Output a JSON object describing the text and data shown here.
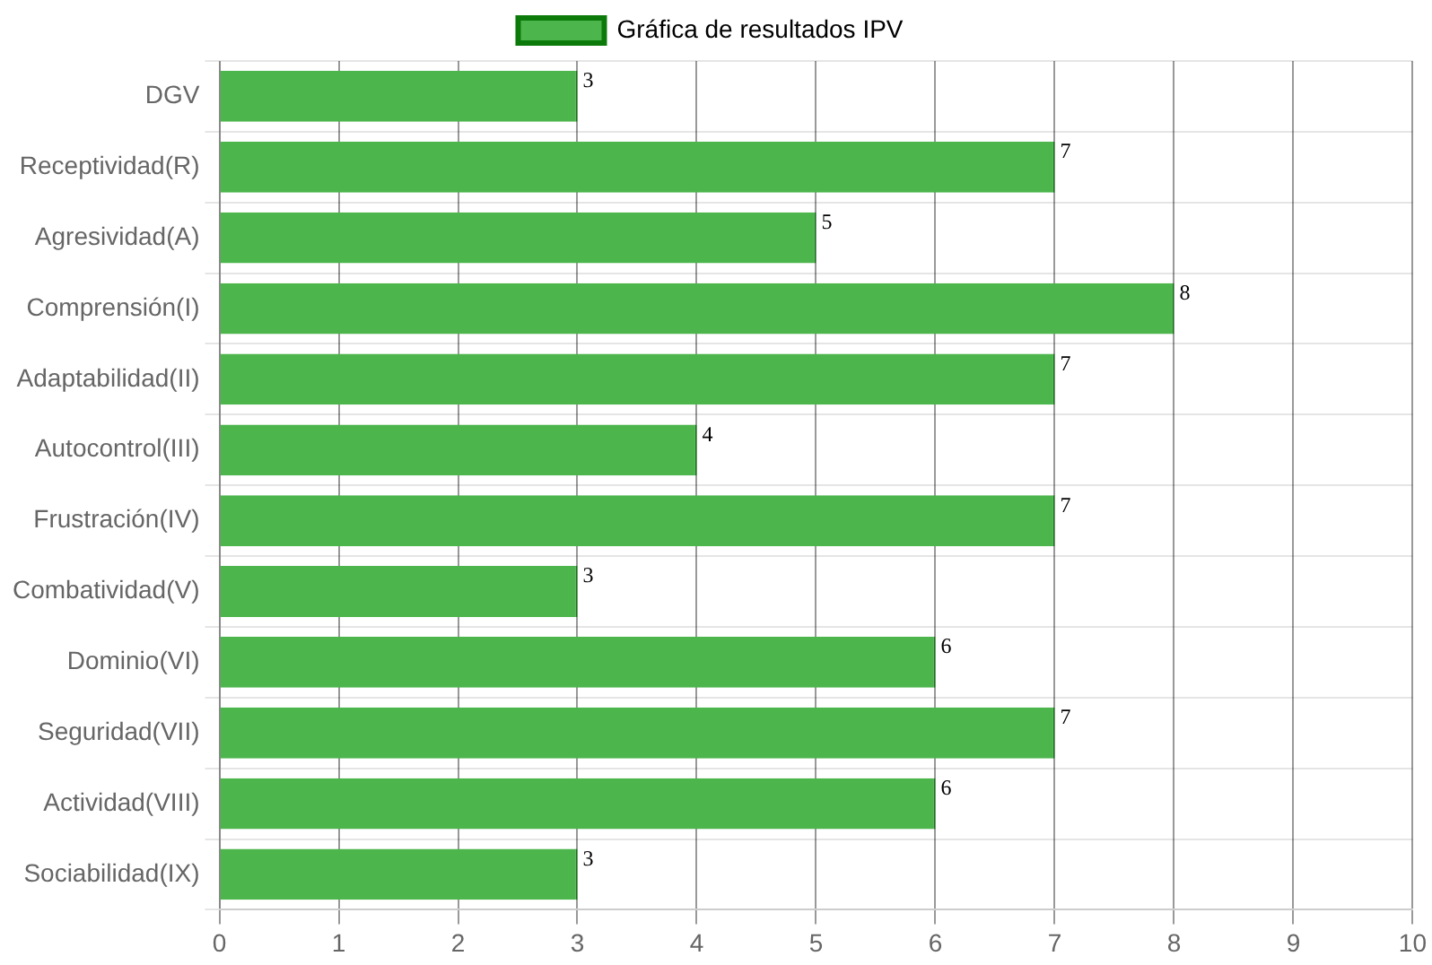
{
  "chart_data": {
    "type": "bar",
    "orientation": "horizontal",
    "categories": [
      "DGV",
      "Receptividad(R)",
      "Agresividad(A)",
      "Comprensión(I)",
      "Adaptabilidad(II)",
      "Autocontrol(III)",
      "Frustración(IV)",
      "Combatividad(V)",
      "Dominio(VI)",
      "Seguridad(VII)",
      "Actividad(VIII)",
      "Sociabilidad(IX)"
    ],
    "series": [
      {
        "name": "Gráfica de resultados IPV",
        "color": "#4cb54c",
        "values": [
          3,
          7,
          5,
          8,
          7,
          4,
          7,
          3,
          6,
          7,
          6,
          3
        ]
      }
    ],
    "xlim": [
      0,
      10
    ],
    "xticks": [
      0,
      1,
      2,
      3,
      4,
      5,
      6,
      7,
      8,
      9,
      10
    ],
    "grid": true,
    "legend": "top",
    "data_labels": true
  }
}
